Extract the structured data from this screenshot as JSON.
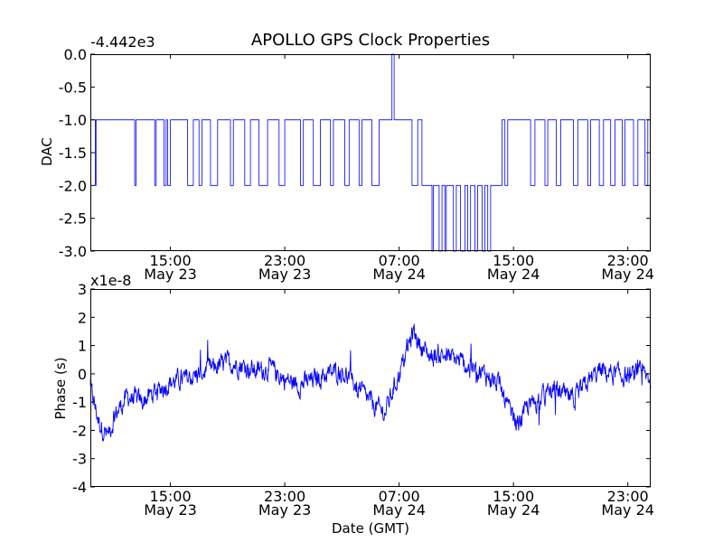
{
  "figure": {
    "title": "APOLLO GPS Clock Properties"
  },
  "chart_data": [
    {
      "type": "line",
      "ylabel": "DAC",
      "y_offset_label": "-4.442e3",
      "xlim_hours": [
        9.4,
        48.6
      ],
      "ylim": [
        -3.0,
        0.0
      ],
      "yticks": [
        "0.0",
        "-0.5",
        "-1.0",
        "-1.5",
        "-2.0",
        "-2.5",
        "-3.0"
      ],
      "xticks": [
        {
          "time": "15:00",
          "date": "May 23"
        },
        {
          "time": "23:00",
          "date": "May 23"
        },
        {
          "time": "07:00",
          "date": "May 24"
        },
        {
          "time": "15:00",
          "date": "May 24"
        },
        {
          "time": "23:00",
          "date": "May 24"
        }
      ],
      "series": [
        {
          "color": "#0000ff",
          "segments": [
            [
              9.4,
              -1.0
            ],
            [
              9.75,
              -2.0
            ],
            [
              9.8,
              -1.0
            ],
            [
              12.5,
              -2.0
            ],
            [
              12.6,
              -1.0
            ],
            [
              13.5,
              -1.0
            ],
            [
              13.9,
              -2.0
            ],
            [
              14.0,
              -1.0
            ],
            [
              14.4,
              -1.0
            ],
            [
              14.55,
              -2.0
            ],
            [
              14.7,
              -1.0
            ],
            [
              14.8,
              -2.0
            ],
            [
              15.0,
              -1.0
            ],
            [
              16.2,
              -2.0
            ],
            [
              16.6,
              -1.0
            ],
            [
              17.0,
              -2.0
            ],
            [
              17.2,
              -1.0
            ],
            [
              17.6,
              -1.0
            ],
            [
              17.8,
              -2.0
            ],
            [
              18.1,
              -2.0
            ],
            [
              18.3,
              -1.0
            ],
            [
              19.0,
              -1.0
            ],
            [
              19.2,
              -2.0
            ],
            [
              19.4,
              -1.0
            ],
            [
              20.0,
              -1.0
            ],
            [
              20.2,
              -2.0
            ],
            [
              20.5,
              -2.0
            ],
            [
              20.6,
              -1.0
            ],
            [
              21.0,
              -1.0
            ],
            [
              21.2,
              -2.0
            ],
            [
              21.8,
              -1.0
            ],
            [
              22.5,
              -1.0
            ],
            [
              22.6,
              -2.0
            ],
            [
              22.9,
              -2.0
            ],
            [
              23.0,
              -1.0
            ],
            [
              24.0,
              -1.0
            ],
            [
              24.1,
              -2.0
            ],
            [
              24.3,
              -1.0
            ],
            [
              24.8,
              -1.0
            ],
            [
              25.0,
              -2.0
            ],
            [
              25.4,
              -2.0
            ],
            [
              25.5,
              -1.0
            ],
            [
              26.0,
              -1.0
            ],
            [
              26.2,
              -2.0
            ],
            [
              26.4,
              -1.0
            ],
            [
              27.0,
              -1.0
            ],
            [
              27.2,
              -2.0
            ],
            [
              27.5,
              -1.0
            ],
            [
              28.0,
              -1.0
            ],
            [
              28.2,
              -2.0
            ],
            [
              28.4,
              -1.0
            ],
            [
              29.0,
              -1.0
            ],
            [
              29.1,
              -2.0
            ],
            [
              29.4,
              -2.0
            ],
            [
              29.6,
              -1.0
            ],
            [
              30.3,
              -1.0
            ],
            [
              30.5,
              0.0
            ],
            [
              30.65,
              -1.0
            ],
            [
              31.8,
              -1.0
            ],
            [
              31.9,
              -2.0
            ],
            [
              32.2,
              -2.0
            ],
            [
              32.3,
              -1.0
            ],
            [
              32.5,
              -1.0
            ],
            [
              32.6,
              -2.0
            ],
            [
              33.2,
              -2.0
            ],
            [
              33.3,
              -3.0
            ],
            [
              33.4,
              -2.0
            ],
            [
              33.6,
              -2.0
            ],
            [
              33.8,
              -3.0
            ],
            [
              34.0,
              -2.0
            ],
            [
              34.2,
              -3.0
            ],
            [
              34.3,
              -2.0
            ],
            [
              34.6,
              -2.0
            ],
            [
              34.8,
              -3.0
            ],
            [
              35.0,
              -2.0
            ],
            [
              35.3,
              -3.0
            ],
            [
              35.6,
              -2.0
            ],
            [
              35.8,
              -3.0
            ],
            [
              36.0,
              -2.0
            ],
            [
              36.3,
              -3.0
            ],
            [
              36.5,
              -2.0
            ],
            [
              36.8,
              -3.0
            ],
            [
              37.0,
              -2.0
            ],
            [
              37.2,
              -3.0
            ],
            [
              37.4,
              -2.0
            ],
            [
              37.7,
              -2.0
            ],
            [
              38.0,
              -2.0
            ],
            [
              38.2,
              -1.0
            ],
            [
              38.4,
              -2.0
            ],
            [
              38.6,
              -1.0
            ],
            [
              40.0,
              -1.0
            ],
            [
              40.2,
              -2.0
            ],
            [
              40.5,
              -1.0
            ],
            [
              41.0,
              -1.0
            ],
            [
              41.2,
              -2.0
            ],
            [
              41.4,
              -1.0
            ],
            [
              41.8,
              -1.0
            ],
            [
              42.0,
              -2.0
            ],
            [
              42.3,
              -1.0
            ],
            [
              43.0,
              -1.0
            ],
            [
              43.2,
              -2.0
            ],
            [
              43.5,
              -1.0
            ],
            [
              44.0,
              -1.0
            ],
            [
              44.2,
              -2.0
            ],
            [
              44.4,
              -1.0
            ],
            [
              44.8,
              -1.0
            ],
            [
              45.0,
              -2.0
            ],
            [
              45.3,
              -1.0
            ],
            [
              45.6,
              -1.0
            ],
            [
              45.8,
              -2.0
            ],
            [
              46.1,
              -1.0
            ],
            [
              46.4,
              -1.0
            ],
            [
              46.6,
              -2.0
            ],
            [
              46.8,
              -1.0
            ],
            [
              47.2,
              -1.0
            ],
            [
              47.4,
              -2.0
            ],
            [
              47.7,
              -1.0
            ],
            [
              48.0,
              -1.0
            ],
            [
              48.2,
              -2.0
            ],
            [
              48.4,
              -1.0
            ],
            [
              48.6,
              -1.0
            ]
          ]
        }
      ]
    },
    {
      "type": "line",
      "ylabel": "Phase (s)",
      "xlabel": "Date (GMT)",
      "y_offset_label": "x1e-8",
      "xlim_hours": [
        9.4,
        48.6
      ],
      "ylim": [
        -4,
        3
      ],
      "yticks": [
        "3",
        "2",
        "1",
        "0",
        "-1",
        "-2",
        "-3",
        "-4"
      ],
      "xticks": [
        {
          "time": "15:00",
          "date": "May 23"
        },
        {
          "time": "23:00",
          "date": "May 23"
        },
        {
          "time": "07:00",
          "date": "May 24"
        },
        {
          "time": "15:00",
          "date": "May 24"
        },
        {
          "time": "23:00",
          "date": "May 24"
        }
      ],
      "series": [
        {
          "color": "#0000ff",
          "trend": [
            [
              9.4,
              -0.5
            ],
            [
              10.0,
              -1.7
            ],
            [
              10.6,
              -2.2
            ],
            [
              11.2,
              -1.4
            ],
            [
              12.0,
              -0.8
            ],
            [
              13.0,
              -1.0
            ],
            [
              14.0,
              -0.6
            ],
            [
              15.0,
              -0.3
            ],
            [
              16.0,
              -0.2
            ],
            [
              17.0,
              0.0
            ],
            [
              18.0,
              0.2
            ],
            [
              19.0,
              0.4
            ],
            [
              20.0,
              0.3
            ],
            [
              21.0,
              0.1
            ],
            [
              22.0,
              0.2
            ],
            [
              23.0,
              -0.2
            ],
            [
              24.0,
              -0.4
            ],
            [
              25.0,
              -0.2
            ],
            [
              26.0,
              0.0
            ],
            [
              27.0,
              0.1
            ],
            [
              28.0,
              -0.4
            ],
            [
              29.0,
              -1.0
            ],
            [
              30.0,
              -1.4
            ],
            [
              30.4,
              -0.8
            ],
            [
              31.0,
              0.0
            ],
            [
              31.6,
              0.9
            ],
            [
              32.0,
              1.5
            ],
            [
              32.5,
              1.0
            ],
            [
              33.2,
              0.6
            ],
            [
              34.0,
              0.7
            ],
            [
              35.0,
              0.5
            ],
            [
              36.0,
              0.2
            ],
            [
              37.0,
              0.0
            ],
            [
              38.0,
              -0.4
            ],
            [
              38.6,
              -1.2
            ],
            [
              39.2,
              -1.8
            ],
            [
              40.0,
              -1.2
            ],
            [
              41.0,
              -0.8
            ],
            [
              42.0,
              -0.6
            ],
            [
              43.0,
              -0.9
            ],
            [
              43.6,
              -0.7
            ],
            [
              44.2,
              -0.3
            ],
            [
              45.0,
              0.1
            ],
            [
              46.0,
              0.0
            ],
            [
              47.0,
              -0.1
            ],
            [
              48.0,
              0.0
            ],
            [
              48.6,
              -0.2
            ]
          ],
          "noise_amplitude": 0.4
        }
      ]
    }
  ]
}
